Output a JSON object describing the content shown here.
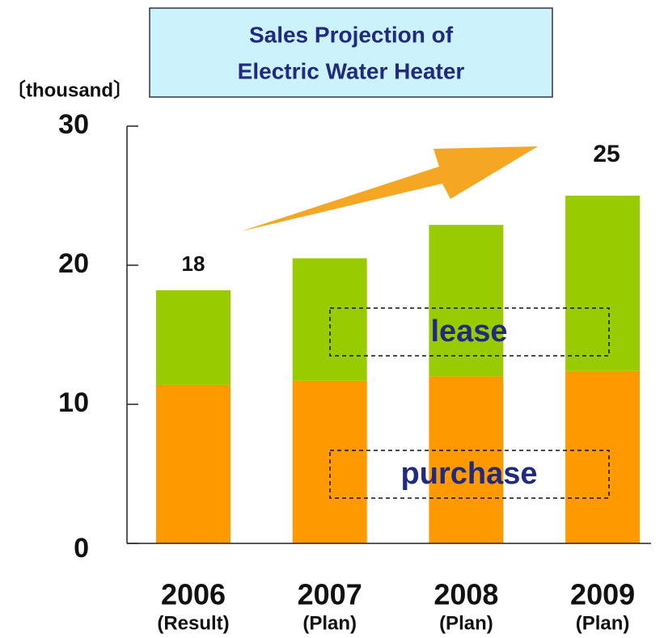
{
  "chart_data": {
    "type": "stacked-bar",
    "title": [
      "Sales Projection of",
      "Electric Water Heater"
    ],
    "y_label": "〔thousand〕",
    "categories": [
      "2006",
      "2007",
      "2008",
      "2009"
    ],
    "category_notes": [
      "(Result)",
      "(Plan)",
      "(Plan)",
      "(Plan)"
    ],
    "series": [
      {
        "name": "purchase",
        "color": "#ff9900",
        "values": [
          11.4,
          11.7,
          12.0,
          12.4
        ]
      },
      {
        "name": "lease",
        "color": "#99cc00",
        "values": [
          6.8,
          8.8,
          10.9,
          12.6
        ]
      }
    ],
    "annotations": [
      "18",
      "25"
    ],
    "ylim": [
      0,
      30
    ],
    "yticks": [
      0,
      10,
      20,
      30
    ]
  }
}
